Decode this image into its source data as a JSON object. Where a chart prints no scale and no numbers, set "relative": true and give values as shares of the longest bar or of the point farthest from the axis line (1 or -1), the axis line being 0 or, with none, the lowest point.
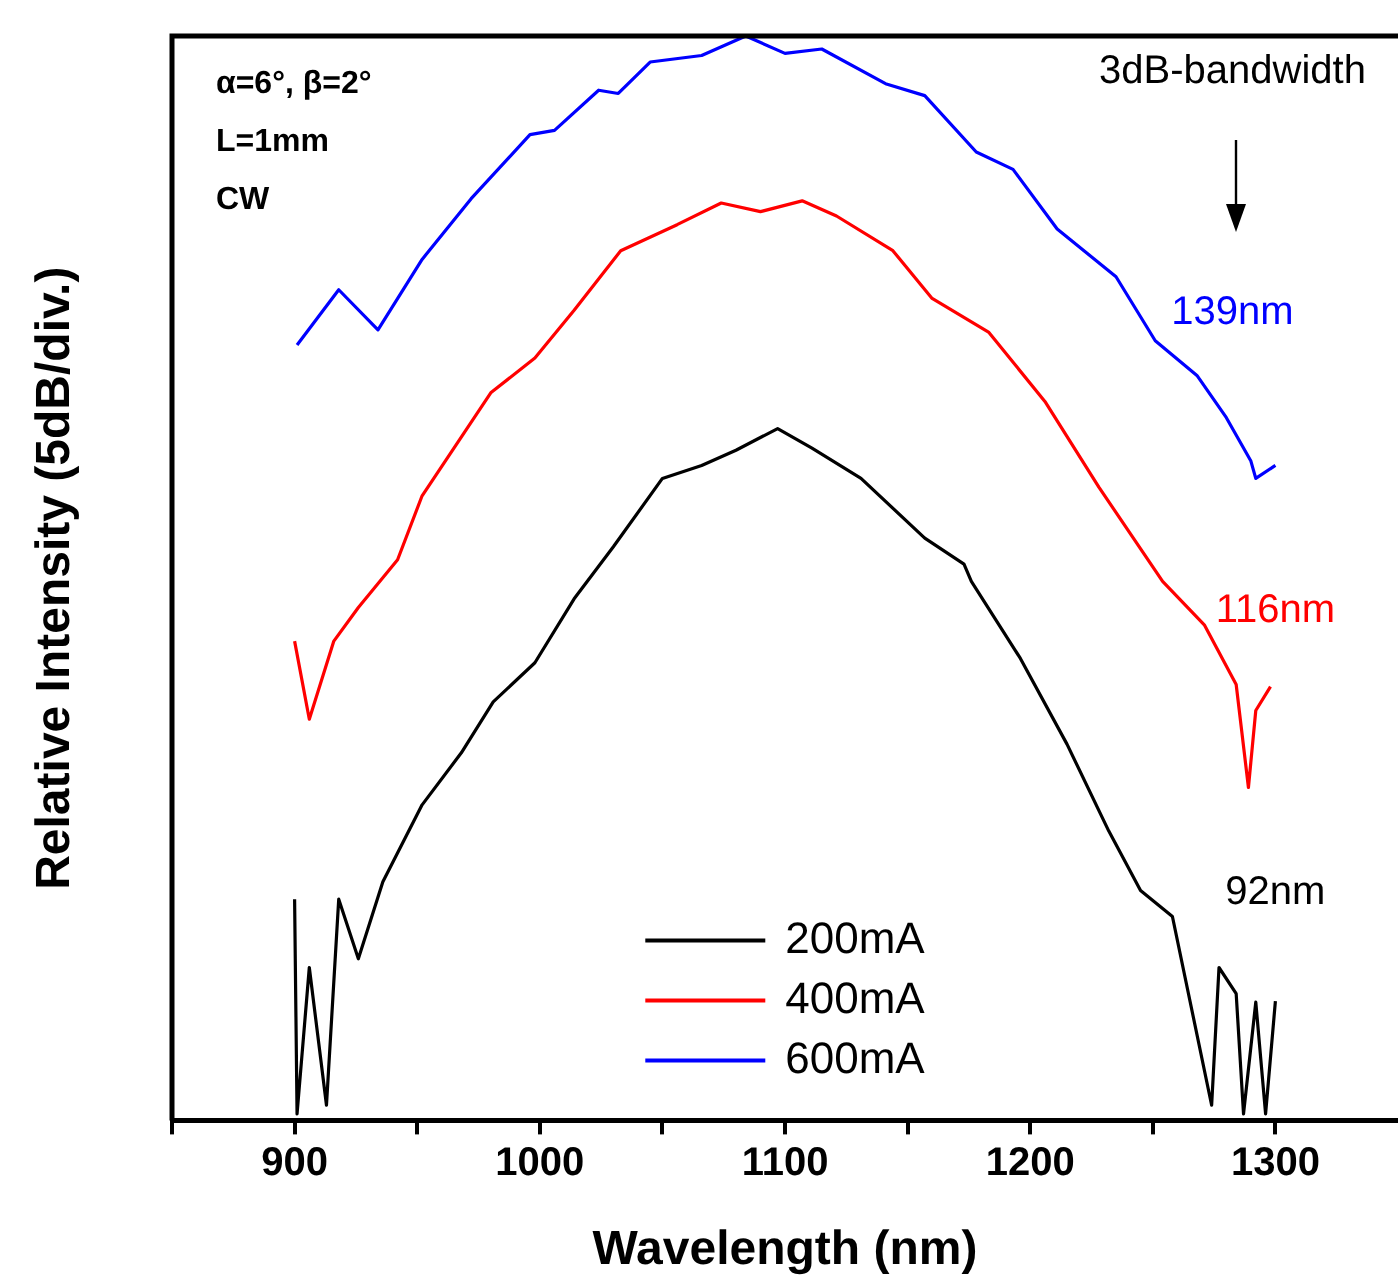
{
  "chart_data": {
    "type": "line",
    "xlabel": "Wavelength (nm)",
    "ylabel": "Relative Intensity (5dB/div.)",
    "relative": true,
    "legend": "bottom",
    "marker": "none",
    "line_style": "solid",
    "xlim": [
      850,
      1350
    ],
    "xticks": [
      {
        "value": 850,
        "label": null
      },
      900,
      {
        "value": 950,
        "label": null
      },
      1000,
      {
        "value": 1050,
        "label": null
      },
      1100,
      {
        "value": 1150,
        "label": null
      },
      1200,
      {
        "value": 1250,
        "label": null
      },
      1300
    ],
    "series": [
      {
        "name": "200mA",
        "color": "#000000",
        "x": [
          900,
          901,
          906,
          913,
          918,
          926,
          936,
          952,
          968,
          981,
          998,
          1014,
          1030,
          1050,
          1066,
          1080,
          1097,
          1111,
          1131,
          1157,
          1173,
          1176,
          1196,
          1215,
          1232,
          1245,
          1258,
          1274,
          1277,
          1284,
          1287,
          1292,
          1296,
          1300
        ],
        "values": [
          0.204,
          0.006,
          0.141,
          0.014,
          0.204,
          0.149,
          0.22,
          0.291,
          0.339,
          0.386,
          0.422,
          0.481,
          0.529,
          0.592,
          0.604,
          0.618,
          0.638,
          0.62,
          0.592,
          0.537,
          0.513,
          0.497,
          0.426,
          0.347,
          0.267,
          0.212,
          0.188,
          0.014,
          0.141,
          0.117,
          0.006,
          0.109,
          0.006,
          0.11
        ]
      },
      {
        "name": "400mA",
        "color": "#ff0000",
        "x": [
          900,
          906,
          916,
          926,
          942,
          952,
          980,
          998,
          1014,
          1033,
          1056,
          1074,
          1090,
          1107,
          1121,
          1144,
          1160,
          1183,
          1206,
          1228,
          1254,
          1271,
          1284,
          1289,
          1292,
          1298
        ],
        "values": [
          0.442,
          0.37,
          0.442,
          0.473,
          0.517,
          0.576,
          0.671,
          0.703,
          0.747,
          0.802,
          0.826,
          0.846,
          0.838,
          0.848,
          0.834,
          0.802,
          0.758,
          0.727,
          0.663,
          0.584,
          0.497,
          0.457,
          0.402,
          0.307,
          0.378,
          0.4
        ]
      },
      {
        "name": "600mA",
        "color": "#0000ff",
        "x": [
          901,
          918,
          934,
          952,
          972,
          996,
          1006,
          1024,
          1032,
          1045,
          1066,
          1084,
          1100,
          1115,
          1141,
          1157,
          1178,
          1193,
          1211,
          1235,
          1251,
          1268,
          1280,
          1290,
          1292,
          1300
        ],
        "values": [
          0.715,
          0.766,
          0.729,
          0.794,
          0.85,
          0.909,
          0.913,
          0.95,
          0.947,
          0.976,
          0.982,
          1,
          0.984,
          0.988,
          0.956,
          0.945,
          0.893,
          0.877,
          0.822,
          0.778,
          0.719,
          0.687,
          0.648,
          0.608,
          0.592,
          0.604
        ]
      }
    ],
    "annotations": [
      "α=6°, β=2°",
      "L=1mm",
      "CW",
      "3dB-bandwidth",
      "139nm",
      "116nm",
      "92nm"
    ]
  }
}
